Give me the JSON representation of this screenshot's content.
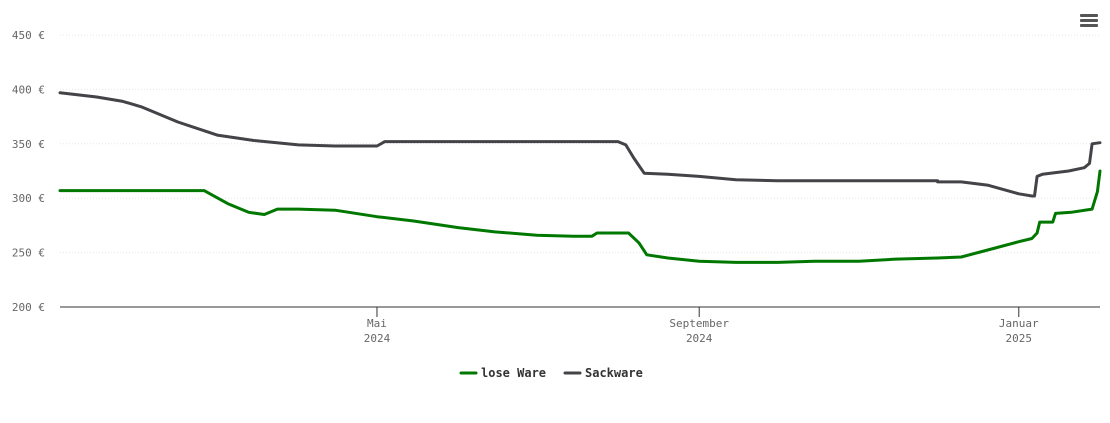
{
  "menu": {
    "icon": "hamburger-menu-icon"
  },
  "chart_data": {
    "type": "line",
    "title": "",
    "xlabel": "",
    "ylabel": "",
    "x_range": [
      "2024-01-01",
      "2025-02-01"
    ],
    "ylim": [
      200,
      450
    ],
    "y_ticks": [
      200,
      250,
      300,
      350,
      400,
      450
    ],
    "y_tick_labels": [
      "200 €",
      "250 €",
      "300 €",
      "350 €",
      "400 €",
      "450 €"
    ],
    "x_ticks": [
      {
        "date": "2024-05-01",
        "line1": "Mai",
        "line2": "2024"
      },
      {
        "date": "2024-09-01",
        "line1": "September",
        "line2": "2024"
      },
      {
        "date": "2025-01-01",
        "line1": "Januar",
        "line2": "2025"
      }
    ],
    "grid": true,
    "legend_position": "bottom-center",
    "series": [
      {
        "name": "lose Ware",
        "color": "#007800",
        "points": [
          [
            "2024-01-01",
            307
          ],
          [
            "2024-01-15",
            307
          ],
          [
            "2024-02-01",
            307
          ],
          [
            "2024-02-15",
            307
          ],
          [
            "2024-02-25",
            307
          ],
          [
            "2024-03-05",
            295
          ],
          [
            "2024-03-13",
            287
          ],
          [
            "2024-03-19",
            285
          ],
          [
            "2024-03-24",
            290
          ],
          [
            "2024-04-01",
            290
          ],
          [
            "2024-04-15",
            289
          ],
          [
            "2024-05-01",
            283
          ],
          [
            "2024-05-15",
            279
          ],
          [
            "2024-06-01",
            273
          ],
          [
            "2024-06-15",
            269
          ],
          [
            "2024-07-01",
            266
          ],
          [
            "2024-07-15",
            265
          ],
          [
            "2024-07-22",
            265
          ],
          [
            "2024-07-24",
            268
          ],
          [
            "2024-08-05",
            268
          ],
          [
            "2024-08-09",
            259
          ],
          [
            "2024-08-12",
            248
          ],
          [
            "2024-08-20",
            245
          ],
          [
            "2024-09-01",
            242
          ],
          [
            "2024-09-15",
            241
          ],
          [
            "2024-10-01",
            241
          ],
          [
            "2024-10-15",
            242
          ],
          [
            "2024-11-01",
            242
          ],
          [
            "2024-11-15",
            244
          ],
          [
            "2024-12-01",
            245
          ],
          [
            "2024-12-10",
            246
          ],
          [
            "2024-12-18",
            251
          ],
          [
            "2025-01-01",
            260
          ],
          [
            "2025-01-06",
            263
          ],
          [
            "2025-01-08",
            268
          ],
          [
            "2025-01-09",
            278
          ],
          [
            "2025-01-14",
            278
          ],
          [
            "2025-01-15",
            286
          ],
          [
            "2025-01-21",
            287
          ],
          [
            "2025-01-29",
            290
          ],
          [
            "2025-01-31",
            306
          ],
          [
            "2025-02-01",
            325
          ]
        ]
      },
      {
        "name": "Sackware",
        "color": "#434348",
        "points": [
          [
            "2024-01-01",
            397
          ],
          [
            "2024-01-15",
            393
          ],
          [
            "2024-01-25",
            389
          ],
          [
            "2024-02-01",
            384
          ],
          [
            "2024-02-15",
            370
          ],
          [
            "2024-03-01",
            358
          ],
          [
            "2024-03-15",
            353
          ],
          [
            "2024-04-01",
            349
          ],
          [
            "2024-04-15",
            348
          ],
          [
            "2024-05-01",
            348
          ],
          [
            "2024-05-04",
            352
          ],
          [
            "2024-05-15",
            352
          ],
          [
            "2024-06-01",
            352
          ],
          [
            "2024-07-01",
            352
          ],
          [
            "2024-08-01",
            352
          ],
          [
            "2024-08-04",
            349
          ],
          [
            "2024-08-07",
            337
          ],
          [
            "2024-08-11",
            323
          ],
          [
            "2024-08-20",
            322
          ],
          [
            "2024-09-01",
            320
          ],
          [
            "2024-09-15",
            317
          ],
          [
            "2024-10-01",
            316
          ],
          [
            "2024-11-01",
            316
          ],
          [
            "2024-12-01",
            316
          ],
          [
            "2024-12-01",
            315
          ],
          [
            "2024-12-10",
            315
          ],
          [
            "2024-12-20",
            312
          ],
          [
            "2025-01-01",
            304
          ],
          [
            "2025-01-06",
            302
          ],
          [
            "2025-01-07",
            302
          ],
          [
            "2025-01-08",
            320
          ],
          [
            "2025-01-10",
            322
          ],
          [
            "2025-01-20",
            325
          ],
          [
            "2025-01-26",
            328
          ],
          [
            "2025-01-28",
            332
          ],
          [
            "2025-01-29",
            350
          ],
          [
            "2025-02-01",
            351
          ]
        ]
      }
    ]
  }
}
